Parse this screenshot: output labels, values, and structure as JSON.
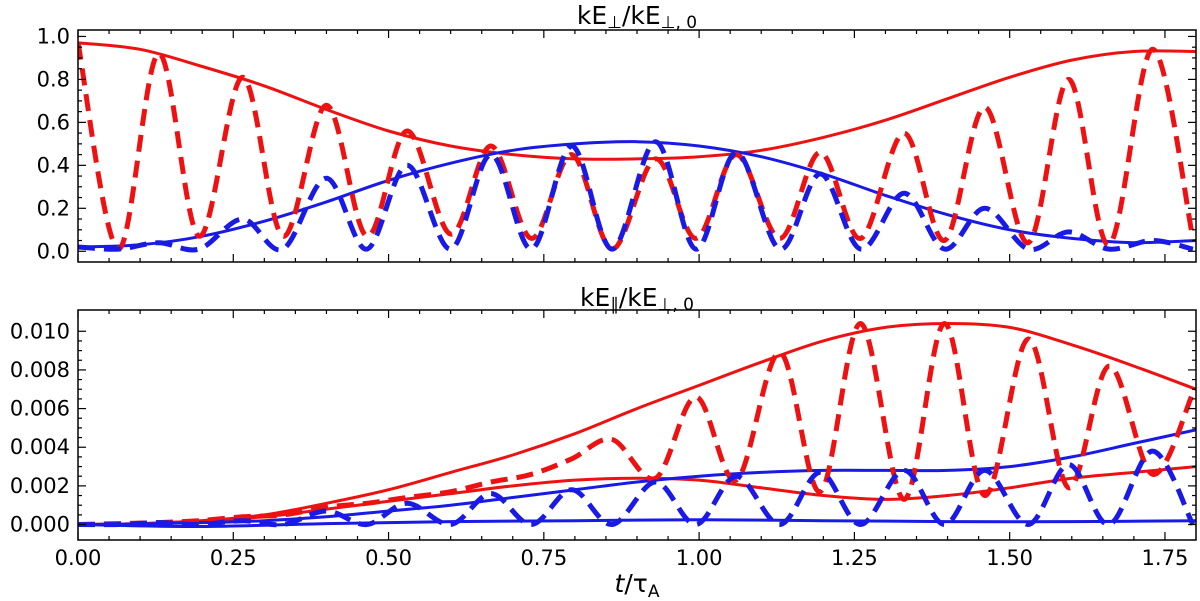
{
  "colors": {
    "red": "#ee1111",
    "blue": "#1a1ae6"
  },
  "xaxis": {
    "label_main": "t",
    "label_slash": "/",
    "label_tau": "τ",
    "label_sub": "A",
    "range": [
      0,
      1.8
    ],
    "ticks": [
      "0.00",
      "0.25",
      "0.50",
      "0.75",
      "1.00",
      "1.25",
      "1.50",
      "1.75"
    ],
    "tick_values": [
      0,
      0.25,
      0.5,
      0.75,
      1.0,
      1.25,
      1.5,
      1.75
    ]
  },
  "chart_data": [
    {
      "type": "line",
      "title_num": "kE",
      "title_num_sub": "⊥",
      "title_slash": "/kE",
      "title_den_sub": "⊥, 0",
      "ylim": [
        -0.05,
        1.03
      ],
      "y_ticks": [
        "0.0",
        "0.2",
        "0.4",
        "0.6",
        "0.8",
        "1.0"
      ],
      "y_tick_values": [
        0,
        0.2,
        0.4,
        0.6,
        0.8,
        1.0
      ],
      "series": [
        {
          "color": "red",
          "style": "solid",
          "kind": "envelope",
          "x": [
            0,
            0.1,
            0.2,
            0.3,
            0.4,
            0.5,
            0.6,
            0.7,
            0.8,
            0.9,
            1.0,
            1.1,
            1.2,
            1.3,
            1.4,
            1.5,
            1.6,
            1.7,
            1.8
          ],
          "y": [
            0.97,
            0.94,
            0.86,
            0.77,
            0.66,
            0.56,
            0.49,
            0.45,
            0.43,
            0.43,
            0.44,
            0.47,
            0.53,
            0.61,
            0.71,
            0.81,
            0.89,
            0.93,
            0.93
          ]
        },
        {
          "color": "blue",
          "style": "solid",
          "kind": "envelope",
          "x": [
            0,
            0.1,
            0.2,
            0.3,
            0.4,
            0.5,
            0.6,
            0.7,
            0.8,
            0.9,
            1.0,
            1.1,
            1.2,
            1.3,
            1.4,
            1.5,
            1.6,
            1.7,
            1.8
          ],
          "y": [
            0.02,
            0.03,
            0.07,
            0.14,
            0.23,
            0.33,
            0.41,
            0.47,
            0.5,
            0.51,
            0.49,
            0.44,
            0.36,
            0.26,
            0.17,
            0.1,
            0.06,
            0.04,
            0.05
          ]
        },
        {
          "color": "red",
          "style": "dashed",
          "kind": "oscillation",
          "x": [
            0,
            0.065,
            0.13,
            0.195,
            0.265,
            0.33,
            0.4,
            0.465,
            0.53,
            0.6,
            0.665,
            0.73,
            0.795,
            0.86,
            0.93,
            0.995,
            1.06,
            1.13,
            1.195,
            1.26,
            1.33,
            1.395,
            1.46,
            1.53,
            1.595,
            1.66,
            1.73,
            1.795
          ],
          "y": [
            0.97,
            0.01,
            0.92,
            0.07,
            0.81,
            0.07,
            0.68,
            0.07,
            0.56,
            0.08,
            0.49,
            0.06,
            0.45,
            0.01,
            0.43,
            0.06,
            0.45,
            0.06,
            0.46,
            0.06,
            0.55,
            0.05,
            0.67,
            0.04,
            0.8,
            0.03,
            0.94,
            0.06
          ]
        },
        {
          "color": "blue",
          "style": "dashed",
          "kind": "oscillation",
          "x": [
            0,
            0.065,
            0.13,
            0.195,
            0.265,
            0.33,
            0.4,
            0.465,
            0.53,
            0.6,
            0.665,
            0.73,
            0.795,
            0.86,
            0.93,
            0.995,
            1.06,
            1.13,
            1.195,
            1.26,
            1.33,
            1.395,
            1.46,
            1.53,
            1.595,
            1.66,
            1.73,
            1.795
          ],
          "y": [
            0.02,
            0.01,
            0.04,
            0.01,
            0.15,
            0.01,
            0.34,
            0.01,
            0.4,
            0.01,
            0.45,
            0.01,
            0.49,
            0.01,
            0.51,
            0.01,
            0.46,
            0.01,
            0.36,
            0.01,
            0.27,
            0.01,
            0.2,
            0.01,
            0.09,
            0.01,
            0.05,
            0.01
          ]
        }
      ]
    },
    {
      "type": "line",
      "title_num": "kE",
      "title_num_sub": "∥",
      "title_slash": "/kE",
      "title_den_sub": "⊥, 0",
      "ylim": [
        -0.0008,
        0.0111
      ],
      "y_ticks": [
        "0.000",
        "0.002",
        "0.004",
        "0.006",
        "0.008",
        "0.010"
      ],
      "y_tick_values": [
        0,
        0.002,
        0.004,
        0.006,
        0.008,
        0.01
      ],
      "series": [
        {
          "color": "red",
          "style": "solid",
          "kind": "envelope",
          "x": [
            0,
            0.1,
            0.2,
            0.3,
            0.4,
            0.5,
            0.6,
            0.7,
            0.8,
            0.9,
            1.0,
            1.1,
            1.2,
            1.3,
            1.4,
            1.5,
            1.6,
            1.7,
            1.8
          ],
          "y": [
            0.0,
            5e-05,
            0.0002,
            0.0005,
            0.0011,
            0.0018,
            0.0027,
            0.0036,
            0.0047,
            0.006,
            0.0072,
            0.0084,
            0.0095,
            0.0102,
            0.0104,
            0.0102,
            0.0093,
            0.0082,
            0.007
          ]
        },
        {
          "color": "red",
          "style": "solid",
          "kind": "envelope",
          "x": [
            0,
            0.1,
            0.2,
            0.3,
            0.4,
            0.5,
            0.6,
            0.7,
            0.8,
            0.9,
            1.0,
            1.1,
            1.2,
            1.3,
            1.4,
            1.5,
            1.6,
            1.7,
            1.8
          ],
          "y": [
            0.0,
            5e-05,
            0.0002,
            0.0004,
            0.0008,
            0.0012,
            0.0016,
            0.002,
            0.0023,
            0.0024,
            0.0023,
            0.0019,
            0.0015,
            0.0013,
            0.0015,
            0.0019,
            0.0024,
            0.0027,
            0.003
          ]
        },
        {
          "color": "blue",
          "style": "solid",
          "kind": "envelope",
          "x": [
            0,
            0.1,
            0.2,
            0.3,
            0.4,
            0.5,
            0.6,
            0.7,
            0.8,
            0.9,
            1.0,
            1.1,
            1.2,
            1.3,
            1.4,
            1.5,
            1.6,
            1.7,
            1.8
          ],
          "y": [
            0.0,
            3e-05,
            0.0001,
            0.0002,
            0.0004,
            0.0007,
            0.001,
            0.0014,
            0.0018,
            0.0022,
            0.0025,
            0.0027,
            0.0028,
            0.0028,
            0.0028,
            0.003,
            0.0035,
            0.0042,
            0.0049
          ]
        },
        {
          "color": "blue",
          "style": "solid",
          "kind": "envelope",
          "x": [
            0,
            0.2,
            0.4,
            0.6,
            0.8,
            1.0,
            1.2,
            1.4,
            1.6,
            1.8
          ],
          "y": [
            0.0,
            -0.0001,
            5e-05,
            0.00015,
            0.0002,
            0.00025,
            0.0002,
            0.00015,
            0.00015,
            0.0002
          ]
        },
        {
          "color": "red",
          "style": "dashed",
          "kind": "oscillation",
          "x": [
            0,
            0.065,
            0.13,
            0.195,
            0.265,
            0.33,
            0.4,
            0.465,
            0.53,
            0.6,
            0.665,
            0.73,
            0.795,
            0.86,
            0.93,
            0.995,
            1.06,
            1.13,
            1.195,
            1.26,
            1.33,
            1.395,
            1.46,
            1.53,
            1.595,
            1.66,
            1.73,
            1.795
          ],
          "y": [
            0.0,
            5e-05,
            0.0001,
            0.0002,
            0.0004,
            0.0005,
            0.0009,
            0.0011,
            0.0014,
            0.0017,
            0.0022,
            0.0026,
            0.0034,
            0.0044,
            0.0024,
            0.0066,
            0.0023,
            0.0089,
            0.0017,
            0.0104,
            0.0013,
            0.0104,
            0.0015,
            0.0096,
            0.0019,
            0.0082,
            0.0026,
            0.0068
          ]
        },
        {
          "color": "blue",
          "style": "dashed",
          "kind": "oscillation",
          "x": [
            0,
            0.065,
            0.13,
            0.195,
            0.265,
            0.33,
            0.4,
            0.465,
            0.53,
            0.6,
            0.665,
            0.73,
            0.795,
            0.86,
            0.93,
            0.995,
            1.06,
            1.13,
            1.195,
            1.26,
            1.33,
            1.395,
            1.46,
            1.53,
            1.595,
            1.66,
            1.73,
            1.795
          ],
          "y": [
            0.0,
            0.0,
            0.0001,
            0.0,
            0.0002,
            0.0,
            0.0007,
            0.0,
            0.0011,
            0.0,
            0.0016,
            0.0,
            0.0018,
            0.0,
            0.0022,
            0.0,
            0.0025,
            0.0,
            0.0027,
            0.0,
            0.0028,
            0.0,
            0.0028,
            0.0,
            0.0031,
            0.0,
            0.0038,
            0.0
          ]
        }
      ]
    }
  ]
}
